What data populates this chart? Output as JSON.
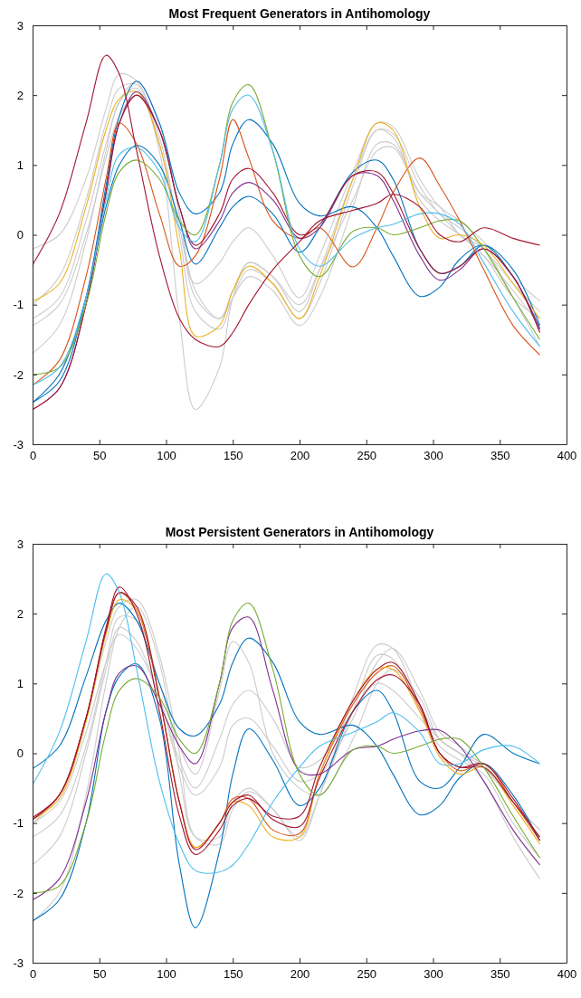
{
  "chart_data": [
    {
      "type": "line",
      "title": "Most Frequent Generators in Antihomology",
      "x": [
        0,
        20,
        40,
        55,
        65,
        78,
        95,
        110,
        122,
        140,
        150,
        162,
        180,
        200,
        215,
        240,
        258,
        270,
        290,
        305,
        320,
        338,
        360,
        380
      ],
      "xlim": [
        0,
        400
      ],
      "ylim": [
        -3,
        3
      ],
      "xticks": [
        0,
        50,
        100,
        150,
        200,
        250,
        300,
        350,
        400
      ],
      "yticks": [
        -3,
        -2,
        -1,
        0,
        1,
        2,
        3
      ],
      "series": [
        {
          "color": "#cccccc",
          "values": [
            -1.0,
            -0.6,
            0.5,
            1.6,
            2.1,
            2.15,
            1.4,
            0.0,
            -1.1,
            -1.35,
            -0.9,
            -0.5,
            -0.7,
            -1.2,
            -0.7,
            0.7,
            1.5,
            1.45,
            0.7,
            0.3,
            0.1,
            -0.2,
            -0.7,
            -1.1
          ]
        },
        {
          "color": "#cccccc",
          "values": [
            -1.2,
            -0.9,
            0.2,
            1.3,
            1.9,
            2.2,
            1.6,
            0.3,
            -0.9,
            -1.2,
            -0.9,
            -0.6,
            -0.8,
            -1.3,
            -0.9,
            0.4,
            1.3,
            1.3,
            0.6,
            0.3,
            0.0,
            -0.3,
            -0.9,
            -1.2
          ]
        },
        {
          "color": "#cccccc",
          "values": [
            -1.7,
            -1.3,
            -0.1,
            1.2,
            1.9,
            2.1,
            1.2,
            -1.2,
            -2.5,
            -1.9,
            -0.9,
            -0.4,
            -0.6,
            -1.1,
            -0.5,
            0.8,
            1.5,
            1.4,
            0.5,
            0.2,
            0.0,
            -0.3,
            -0.8,
            -1.3
          ]
        },
        {
          "color": "#cccccc",
          "values": [
            -0.2,
            0.0,
            0.8,
            1.8,
            2.3,
            2.2,
            1.3,
            0.1,
            -0.7,
            -0.4,
            -0.1,
            0.1,
            -0.3,
            -0.9,
            -0.3,
            0.9,
            1.6,
            1.55,
            0.8,
            0.4,
            0.2,
            -0.1,
            -0.6,
            -0.95
          ]
        },
        {
          "color": "#cccccc",
          "values": [
            -1.3,
            -1.0,
            0.0,
            1.1,
            1.7,
            2.0,
            1.5,
            0.3,
            -0.8,
            -1.2,
            -0.8,
            -0.4,
            -0.6,
            -1.0,
            -0.5,
            0.5,
            1.2,
            1.25,
            0.6,
            0.4,
            0.0,
            -0.2,
            -0.9,
            -1.6
          ]
        },
        {
          "color": "#0072bd",
          "values": [
            -2.4,
            -2.1,
            -0.9,
            0.7,
            1.7,
            2.2,
            1.6,
            0.6,
            0.3,
            0.6,
            1.3,
            1.65,
            1.3,
            0.45,
            0.27,
            0.4,
            0.1,
            -0.3,
            -0.88,
            -0.75,
            -0.35,
            -0.15,
            -0.6,
            -1.35
          ]
        },
        {
          "color": "#0072bd",
          "values": [
            -2.4,
            -2.0,
            -0.9,
            0.4,
            1.0,
            1.28,
            1.0,
            0.2,
            -0.42,
            0.1,
            0.4,
            0.55,
            0.3,
            -0.25,
            0.1,
            0.9,
            1.07,
            0.8,
            -0.2,
            -0.55,
            -0.45,
            -0.15,
            -0.5,
            -1.3
          ]
        },
        {
          "color": "#d95319",
          "values": [
            -2.15,
            -1.8,
            -0.6,
            0.8,
            1.6,
            1.3,
            0.3,
            -0.45,
            -0.3,
            0.8,
            1.65,
            1.1,
            0.2,
            -0.05,
            0.1,
            -0.46,
            0.1,
            0.6,
            1.1,
            0.7,
            0.2,
            -0.5,
            -1.3,
            -1.72
          ]
        },
        {
          "color": "#edb120",
          "values": [
            -0.95,
            -0.7,
            0.4,
            1.5,
            1.95,
            2.05,
            1.3,
            -0.2,
            -1.45,
            -1.3,
            -0.8,
            -0.45,
            -0.7,
            -1.2,
            -0.6,
            0.8,
            1.6,
            1.5,
            0.4,
            -0.05,
            0.0,
            -0.15,
            -0.7,
            -1.2
          ]
        },
        {
          "color": "#7e2f8e",
          "values": [
            -2.5,
            -2.2,
            -1.0,
            0.6,
            1.6,
            2.05,
            1.5,
            0.4,
            -0.2,
            0.2,
            0.6,
            0.75,
            0.5,
            -0.05,
            0.1,
            0.85,
            0.85,
            0.5,
            -0.3,
            -0.65,
            -0.5,
            -0.2,
            -0.6,
            -1.35
          ]
        },
        {
          "color": "#a2142f",
          "values": [
            -2.5,
            -2.2,
            -1.0,
            0.6,
            1.6,
            2.0,
            1.5,
            0.4,
            -0.15,
            0.3,
            0.8,
            0.95,
            0.6,
            0.0,
            0.15,
            0.85,
            0.9,
            0.6,
            -0.2,
            -0.55,
            -0.45,
            -0.2,
            -0.6,
            -1.4
          ]
        },
        {
          "color": "#77ac30",
          "values": [
            -2.0,
            -1.9,
            -1.0,
            0.3,
            0.9,
            1.07,
            0.8,
            0.2,
            0.0,
            1.0,
            1.9,
            2.15,
            1.2,
            -0.3,
            -0.6,
            0.05,
            0.1,
            0.0,
            0.1,
            0.2,
            0.2,
            -0.2,
            -0.9,
            -1.5
          ]
        },
        {
          "color": "#4dbeee",
          "values": [
            -2.15,
            -1.9,
            -0.9,
            0.5,
            1.15,
            1.25,
            0.9,
            0.1,
            -0.1,
            1.0,
            1.8,
            2.0,
            1.2,
            -0.2,
            -0.45,
            -0.05,
            0.1,
            0.15,
            0.3,
            0.3,
            0.15,
            -0.4,
            -1.1,
            -1.6
          ]
        },
        {
          "color": "#a2142f",
          "values": [
            -0.43,
            0.3,
            1.6,
            2.57,
            2.3,
            1.2,
            -0.3,
            -1.2,
            -1.5,
            -1.6,
            -1.4,
            -1.0,
            -0.5,
            -0.1,
            0.2,
            0.35,
            0.45,
            0.58,
            0.4,
            0.0,
            -0.1,
            0.1,
            -0.05,
            -0.15
          ]
        }
      ]
    },
    {
      "type": "line",
      "title": "Most Persistent Generators in Antihomology",
      "x": [
        0,
        20,
        40,
        55,
        65,
        78,
        95,
        110,
        122,
        140,
        150,
        162,
        180,
        200,
        215,
        240,
        258,
        270,
        290,
        305,
        320,
        338,
        360,
        380
      ],
      "xlim": [
        0,
        400
      ],
      "ylim": [
        -3,
        3
      ],
      "xticks": [
        0,
        50,
        100,
        150,
        200,
        250,
        300,
        350,
        400
      ],
      "yticks": [
        -3,
        -2,
        -1,
        0,
        1,
        2,
        3
      ],
      "series": [
        {
          "color": "#cccccc",
          "values": [
            -1.0,
            -0.6,
            0.5,
            1.6,
            2.1,
            2.2,
            1.4,
            0.0,
            -1.2,
            -1.3,
            -0.8,
            -0.55,
            -0.8,
            -1.25,
            -0.6,
            0.8,
            1.55,
            1.5,
            0.7,
            0.2,
            0.0,
            -0.15,
            -0.7,
            -1.1
          ]
        },
        {
          "color": "#cccccc",
          "values": [
            -2.4,
            -2.0,
            -0.6,
            1.0,
            1.8,
            2.1,
            1.3,
            -0.3,
            -1.2,
            -1.2,
            -0.7,
            -0.5,
            -0.8,
            -1.2,
            -0.6,
            0.6,
            1.4,
            1.35,
            0.6,
            0.1,
            -0.1,
            -0.3,
            -1.0,
            -1.5
          ]
        },
        {
          "color": "#cccccc",
          "values": [
            -1.6,
            -1.2,
            0.0,
            1.2,
            1.8,
            1.6,
            0.8,
            -0.1,
            -0.5,
            0.2,
            0.7,
            0.9,
            0.5,
            -0.2,
            -0.1,
            0.6,
            1.0,
            0.9,
            0.5,
            0.2,
            0.0,
            -0.2,
            -0.7,
            -1.1
          ]
        },
        {
          "color": "#cccccc",
          "values": [
            -1.2,
            -0.9,
            0.1,
            1.3,
            1.95,
            1.9,
            1.0,
            0.1,
            -0.3,
            0.9,
            1.6,
            1.3,
            0.0,
            -0.5,
            -0.6,
            0.2,
            1.0,
            1.2,
            0.8,
            0.2,
            0.0,
            -0.4,
            -1.2,
            -1.8
          ]
        },
        {
          "color": "#cccccc",
          "values": [
            -1.0,
            -0.7,
            0.3,
            1.3,
            1.7,
            1.5,
            0.8,
            -0.2,
            -0.6,
            -0.2,
            0.4,
            0.5,
            0.1,
            -0.4,
            -0.3,
            0.5,
            1.3,
            1.5,
            0.9,
            0.3,
            0.1,
            -0.2,
            -0.7,
            -1.2
          ]
        },
        {
          "color": "#0072bd",
          "values": [
            -0.22,
            0.1,
            1.1,
            1.9,
            2.15,
            1.9,
            1.0,
            0.35,
            0.25,
            0.7,
            1.3,
            1.65,
            1.3,
            0.45,
            0.27,
            0.4,
            0.1,
            -0.3,
            -0.88,
            -0.75,
            -0.35,
            -0.15,
            -0.6,
            -1.25
          ]
        },
        {
          "color": "#0072bd",
          "values": [
            -2.4,
            -2.1,
            -1.0,
            0.6,
            1.1,
            1.28,
            0.5,
            -1.6,
            -2.5,
            -1.4,
            -0.3,
            0.35,
            -0.1,
            -0.75,
            -0.5,
            0.6,
            0.9,
            0.6,
            -0.4,
            -0.5,
            -0.2,
            0.27,
            0.0,
            -0.15
          ]
        },
        {
          "color": "#d95319",
          "values": [
            -0.95,
            -0.6,
            0.5,
            1.75,
            2.3,
            2.05,
            0.8,
            -0.7,
            -1.35,
            -1.0,
            -0.65,
            -0.65,
            -1.1,
            -1.15,
            -0.3,
            0.7,
            1.15,
            1.25,
            0.65,
            0.0,
            -0.25,
            -0.15,
            -0.7,
            -1.25
          ]
        },
        {
          "color": "#edb120",
          "values": [
            -0.95,
            -0.65,
            0.45,
            1.7,
            2.2,
            2.05,
            0.8,
            -0.7,
            -1.35,
            -1.0,
            -0.7,
            -0.75,
            -1.2,
            -1.2,
            -0.3,
            0.75,
            1.2,
            1.2,
            0.6,
            -0.05,
            -0.3,
            -0.2,
            -0.75,
            -1.3
          ]
        },
        {
          "color": "#a2142f",
          "values": [
            -0.95,
            -0.6,
            0.5,
            1.75,
            2.3,
            2.1,
            0.8,
            -0.7,
            -1.38,
            -1.0,
            -0.7,
            -0.6,
            -0.95,
            -1.05,
            -0.35,
            0.6,
            1.05,
            1.12,
            0.7,
            0.0,
            -0.2,
            -0.2,
            -0.7,
            -1.2
          ]
        },
        {
          "color": "#a2142f",
          "values": [
            -0.92,
            -0.6,
            0.5,
            1.8,
            2.38,
            2.0,
            0.6,
            -0.9,
            -1.45,
            -1.1,
            -0.75,
            -0.65,
            -0.9,
            -0.9,
            -0.2,
            0.75,
            1.2,
            1.3,
            0.7,
            0.0,
            -0.2,
            -0.15,
            -0.65,
            -1.25
          ]
        },
        {
          "color": "#7e2f8e",
          "values": [
            -2.1,
            -1.8,
            -0.7,
            0.6,
            1.15,
            1.25,
            0.7,
            0.1,
            -0.15,
            1.0,
            1.8,
            1.95,
            0.9,
            -0.25,
            -0.3,
            0.05,
            0.1,
            0.2,
            0.32,
            0.33,
            0.1,
            -0.4,
            -1.1,
            -1.6
          ]
        },
        {
          "color": "#77ac30",
          "values": [
            -2.0,
            -1.9,
            -1.0,
            0.3,
            0.9,
            1.07,
            0.8,
            0.2,
            0.0,
            1.0,
            1.9,
            2.15,
            1.2,
            -0.3,
            -0.6,
            0.05,
            0.1,
            0.0,
            0.1,
            0.2,
            0.2,
            -0.2,
            -0.9,
            -1.5
          ]
        },
        {
          "color": "#4dbeee",
          "values": [
            -0.45,
            0.3,
            1.6,
            2.57,
            2.3,
            1.2,
            -0.4,
            -1.3,
            -1.68,
            -1.7,
            -1.6,
            -1.3,
            -0.7,
            -0.2,
            0.1,
            0.3,
            0.45,
            0.58,
            0.3,
            -0.15,
            -0.15,
            0.05,
            0.1,
            -0.15
          ]
        }
      ]
    }
  ]
}
